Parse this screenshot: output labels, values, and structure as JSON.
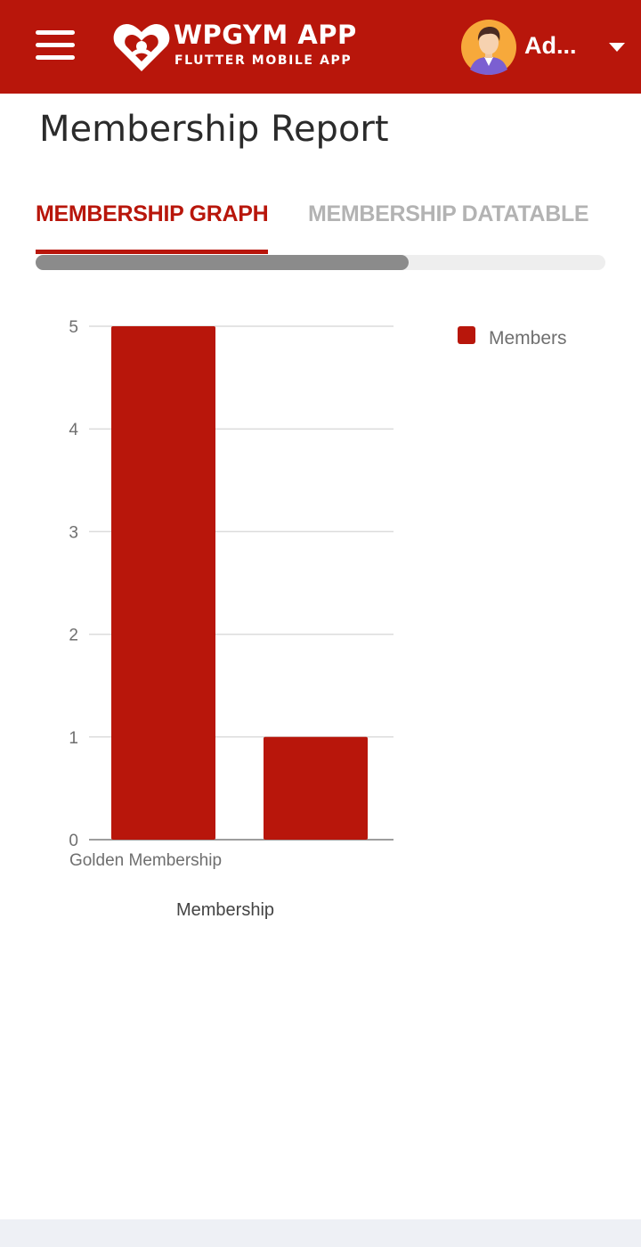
{
  "appbar": {
    "menu_icon": "hamburger-menu-icon",
    "logo_icon": "wpgym-heart-logo",
    "brand_title": "WPGYM APP",
    "brand_subtitle": "FLUTTER MOBILE APP",
    "user_name": "Ad...",
    "avatar_icon": "user-avatar",
    "dropdown_icon": "caret-down-icon",
    "color": "#b8160b"
  },
  "page": {
    "title": "Membership Report"
  },
  "tabs": [
    {
      "label": "MEMBERSHIP GRAPH",
      "active": true
    },
    {
      "label": "MEMBERSHIP DATATABLE",
      "active": false
    }
  ],
  "scrollbar": {
    "position": 0.65
  },
  "chart_data": {
    "type": "bar",
    "categories": [
      "Golden Membership",
      ""
    ],
    "visible_category_labels": [
      "Golden Membership"
    ],
    "series": [
      {
        "name": "Members",
        "values": [
          5,
          1
        ],
        "color": "#b8160b"
      }
    ],
    "title": "",
    "xlabel": "Membership",
    "ylabel": "",
    "ylim": [
      0,
      5
    ],
    "yticks": [
      "0",
      "1",
      "2",
      "3",
      "4",
      "5"
    ],
    "grid": true,
    "legend": "top-right"
  }
}
